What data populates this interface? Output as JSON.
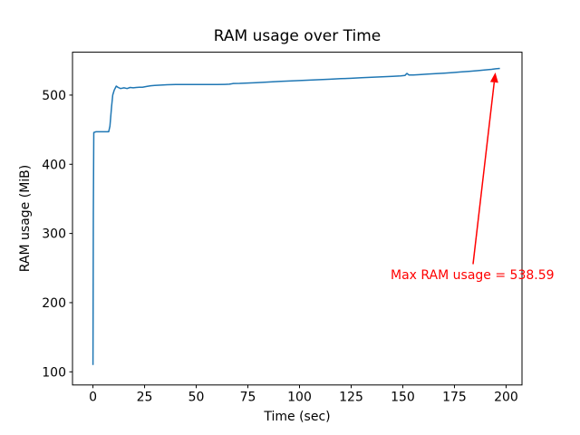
{
  "chart_data": {
    "type": "line",
    "title": "RAM usage over Time",
    "xlabel": "Time (sec)",
    "ylabel": "RAM usage (MiB)",
    "xlim": [
      -9.9,
      207.7
    ],
    "ylim": [
      81,
      562
    ],
    "xticks": [
      "0",
      "25",
      "50",
      "75",
      "100",
      "125",
      "150",
      "175",
      "200"
    ],
    "xtick_values": [
      0,
      25,
      50,
      75,
      100,
      125,
      150,
      175,
      200
    ],
    "yticks": [
      "100",
      "200",
      "300",
      "400",
      "500"
    ],
    "ytick_values": [
      100,
      200,
      300,
      400,
      500
    ],
    "grid": false,
    "legend": "none",
    "line_color": "#1f77b4",
    "series": [
      {
        "name": "RAM usage",
        "points": [
          [
            0,
            110
          ],
          [
            0.2,
            330
          ],
          [
            0.4,
            446
          ],
          [
            1.5,
            447
          ],
          [
            7.6,
            447
          ],
          [
            8.2,
            455
          ],
          [
            9,
            483
          ],
          [
            9.6,
            500
          ],
          [
            10.3,
            507
          ],
          [
            11.3,
            513
          ],
          [
            12.2,
            511
          ],
          [
            13.4,
            509.5
          ],
          [
            15,
            510.5
          ],
          [
            16.5,
            509.5
          ],
          [
            18,
            511
          ],
          [
            19.5,
            510.5
          ],
          [
            21,
            511
          ],
          [
            22.5,
            511.5
          ],
          [
            24,
            511.5
          ],
          [
            26,
            512.5
          ],
          [
            28,
            513.5
          ],
          [
            30,
            514
          ],
          [
            33,
            514.5
          ],
          [
            36,
            515
          ],
          [
            40,
            515.2
          ],
          [
            45,
            515.3
          ],
          [
            50,
            515.3
          ],
          [
            55,
            515.2
          ],
          [
            60,
            515.3
          ],
          [
            64,
            515.5
          ],
          [
            66,
            515.8
          ],
          [
            68,
            516.8
          ],
          [
            71,
            517
          ],
          [
            75,
            517.5
          ],
          [
            79,
            518
          ],
          [
            83,
            518.7
          ],
          [
            87,
            519.3
          ],
          [
            91,
            519.8
          ],
          [
            95,
            520.3
          ],
          [
            100,
            521
          ],
          [
            105,
            521.7
          ],
          [
            110,
            522.3
          ],
          [
            115,
            523
          ],
          [
            120,
            523.7
          ],
          [
            125,
            524.3
          ],
          [
            130,
            525
          ],
          [
            135,
            525.7
          ],
          [
            140,
            526.5
          ],
          [
            145,
            527.2
          ],
          [
            149,
            527.8
          ],
          [
            151,
            528.3
          ],
          [
            152,
            531.3
          ],
          [
            153,
            529
          ],
          [
            155,
            529
          ],
          [
            158,
            529.5
          ],
          [
            162,
            530.3
          ],
          [
            166,
            531
          ],
          [
            170,
            531.8
          ],
          [
            174,
            532.5
          ],
          [
            178,
            533.5
          ],
          [
            182,
            534.3
          ],
          [
            186,
            535.3
          ],
          [
            190,
            536.5
          ],
          [
            193,
            537.3
          ],
          [
            195,
            538
          ],
          [
            197,
            538.59
          ]
        ]
      }
    ],
    "annotation": {
      "text": "Max RAM usage = 538.59",
      "color": "#ff0000",
      "text_xy": [
        144.1,
        249.7
      ],
      "arrow_from": [
        184.0,
        255.6
      ],
      "arrow_to": [
        194.8,
        532.7
      ]
    }
  }
}
